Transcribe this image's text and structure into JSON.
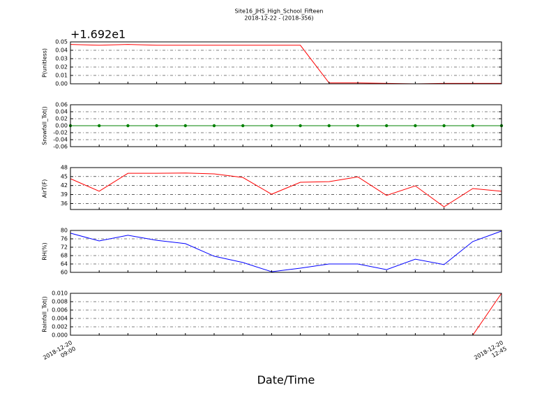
{
  "title": "Site16_JHS_High_School_Fifteen",
  "subtitle": "2018-12-22 - (2018-356)",
  "xlabel": "Date/Time",
  "categories": [
    "2018-12-20\n09:00",
    null,
    null,
    null,
    null,
    null,
    null,
    null,
    null,
    null,
    null,
    null,
    null,
    null,
    null,
    "2018-12-20\n12:45"
  ],
  "chart_data": [
    {
      "type": "line",
      "ylabel": "P(unitless)",
      "offset_label": "+1.692e1",
      "grid": true,
      "ylim": [
        0,
        0.05
      ],
      "yticks": [
        {
          "value": 0,
          "label": "0.00"
        },
        {
          "value": 0.01,
          "label": "0.01"
        },
        {
          "value": 0.02,
          "label": "0.02"
        },
        {
          "value": 0.03,
          "label": "0.03"
        },
        {
          "value": 0.04,
          "label": "0.04"
        },
        {
          "value": 0.05,
          "label": "0.05"
        }
      ],
      "series": [
        {
          "color": "#ff0000",
          "values": [
            0.047,
            0.046,
            0.047,
            0.046,
            0.046,
            0.046,
            0.046,
            0.046,
            0.046,
            0.001,
            0.001,
            0.0005,
            0,
            0.0005,
            0.0005,
            0.0005
          ]
        }
      ]
    },
    {
      "type": "line",
      "ylabel": "Snowfall_Tot()",
      "grid": true,
      "ylim": [
        -0.06,
        0.06
      ],
      "yticks": [
        {
          "value": -0.06,
          "label": "-0.06"
        },
        {
          "value": -0.04,
          "label": "-0.04"
        },
        {
          "value": -0.02,
          "label": "-0.02"
        },
        {
          "value": 0,
          "label": "0.00"
        },
        {
          "value": 0.02,
          "label": "0.02"
        },
        {
          "value": 0.04,
          "label": "0.04"
        },
        {
          "value": 0.06,
          "label": "0.06"
        }
      ],
      "series": [
        {
          "color": "#008000",
          "marker": "o",
          "values": [
            0,
            0,
            0,
            0,
            0,
            0,
            0,
            0,
            0,
            0,
            0,
            0,
            0,
            0,
            0,
            0
          ]
        }
      ]
    },
    {
      "type": "line",
      "ylabel": "AirT(F)",
      "grid": true,
      "ylim": [
        34,
        48
      ],
      "yticks": [
        36,
        39,
        42,
        45,
        48
      ],
      "series": [
        {
          "color": "#ff0000",
          "values": [
            44.3,
            40.1,
            46.1,
            46.1,
            46.2,
            45.9,
            44.7,
            39.1,
            43.1,
            43.3,
            44.9,
            38.7,
            41.9,
            34.9,
            41.0,
            40.1
          ]
        }
      ]
    },
    {
      "type": "line",
      "ylabel": "RH(%)",
      "grid": true,
      "ylim": [
        60,
        80
      ],
      "yticks": [
        60,
        64,
        68,
        72,
        76,
        80
      ],
      "series": [
        {
          "color": "#0000ff",
          "values": [
            78.7,
            75,
            77.7,
            75.3,
            73.7,
            67.7,
            64.7,
            60.3,
            62,
            64,
            64,
            61.3,
            66.3,
            63.7,
            74.7,
            79.7
          ]
        }
      ]
    },
    {
      "type": "line",
      "ylabel": "Rainfall_Tot()",
      "grid": true,
      "ylim": [
        0,
        0.01
      ],
      "yticks": [
        {
          "value": 0,
          "label": "0.000"
        },
        {
          "value": 0.002,
          "label": "0.002"
        },
        {
          "value": 0.004,
          "label": "0.004"
        },
        {
          "value": 0.006,
          "label": "0.006"
        },
        {
          "value": 0.008,
          "label": "0.008"
        },
        {
          "value": 0.01,
          "label": "0.010"
        }
      ],
      "series": [
        {
          "color": "#ff0000",
          "values": [
            0,
            0,
            0,
            0,
            0,
            0,
            0,
            0,
            0,
            0,
            0,
            0,
            0,
            0,
            0,
            0.01
          ]
        }
      ]
    }
  ]
}
